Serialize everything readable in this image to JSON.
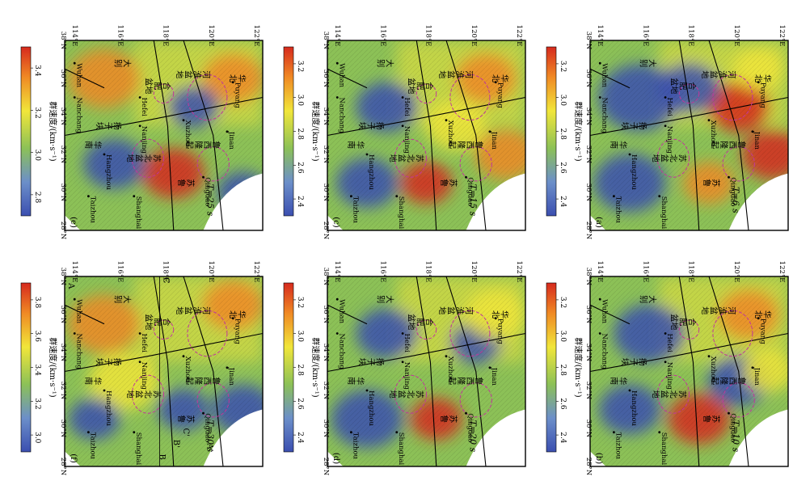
{
  "figure": {
    "colorbar_title": "群速度/(km·s⁻¹)",
    "lat_ticks": [
      "28°N",
      "30°N",
      "32°N",
      "34°N",
      "36°N",
      "38°N"
    ],
    "lon_ticks": [
      "114°E",
      "116°E",
      "118°E",
      "120°E",
      "122°E"
    ],
    "colors": {
      "low": "#3b4fb0",
      "mid": "#f1e63a",
      "high": "#d62a1e",
      "green": "#8cc157",
      "basin_outline": "#c0379b",
      "fault": "#000000"
    }
  },
  "cities": [
    "Wuhan",
    "Nanchang",
    "Hefei",
    "Xuzhou",
    "Jinan",
    "Puyang",
    "Nanjing",
    "Qingdao",
    "Hangzhou",
    "Shanghai",
    "Taizhou"
  ],
  "regions": {
    "huaihe_basin": [
      "河",
      "淮",
      "盆",
      "地"
    ],
    "hefei_basin": [
      "合",
      "肥",
      "盆地"
    ],
    "luxi_uplift": [
      "鲁",
      "西",
      "隆",
      "起"
    ],
    "subei_basin": [
      "苏",
      "北",
      "盆",
      "地"
    ],
    "sulu": [
      "苏",
      "鲁"
    ],
    "yangtze": [
      "扬",
      "子",
      "块"
    ],
    "dabie": [
      "大",
      "别"
    ],
    "huabei": [
      "华",
      "北"
    ],
    "southeast": [
      "华",
      "南"
    ]
  },
  "panels": [
    {
      "id": "a",
      "label": "(a)",
      "period": "T=6 s",
      "ticks": [
        "2.4",
        "2.6",
        "2.8",
        "3.0",
        "3.2"
      ]
    },
    {
      "id": "b",
      "label": "(b)",
      "period": "T=10 s",
      "ticks": [
        "2.4",
        "2.6",
        "2.8",
        "3.0",
        "3.2"
      ]
    },
    {
      "id": "c",
      "label": "(c)",
      "period": "T=15 s",
      "ticks": [
        "2.4",
        "2.6",
        "2.8",
        "3.0",
        "3.2"
      ]
    },
    {
      "id": "d",
      "label": "(d)",
      "period": "T=20 s",
      "ticks": [
        "2.4",
        "2.6",
        "2.8",
        "3.0",
        "3.2"
      ]
    },
    {
      "id": "e",
      "label": "(e)",
      "period": "T=25 s",
      "ticks": [
        "2.8",
        "3.0",
        "3.2",
        "3.4"
      ]
    },
    {
      "id": "f",
      "label": "(f)",
      "period": "T=30 s",
      "ticks": [
        "3.0",
        "3.2",
        "3.4",
        "3.6",
        "3.8"
      ],
      "profile_labels": [
        "A",
        "A'",
        "B",
        "B'",
        "C",
        "C'"
      ]
    }
  ]
}
